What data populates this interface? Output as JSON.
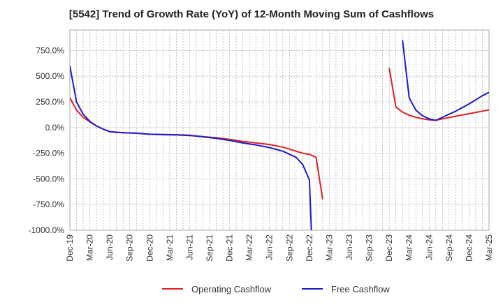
{
  "chart_data": {
    "type": "line",
    "title": "[5542]  Trend of Growth Rate (YoY) of 12-Month Moving Sum of Cashflows",
    "xlabel": "",
    "ylabel": "",
    "x_ticks": [
      "Dec-19",
      "Mar-20",
      "Jun-20",
      "Sep-20",
      "Dec-20",
      "Mar-21",
      "Jun-21",
      "Sep-21",
      "Dec-21",
      "Mar-22",
      "Jun-22",
      "Sep-22",
      "Dec-22",
      "Mar-23",
      "Jun-23",
      "Sep-23",
      "Dec-23",
      "Mar-24",
      "Jun-24",
      "Sep-24",
      "Dec-24",
      "Mar-25"
    ],
    "y_ticks": [
      750,
      500,
      250,
      0,
      -250,
      -500,
      -750,
      -1000
    ],
    "y_tick_labels": [
      "750.0%",
      "500.0%",
      "250.0%",
      "0.0%",
      "-250.0%",
      "-500.0%",
      "-750.0%",
      "-1000.0%"
    ],
    "ylim": [
      -1000,
      950
    ],
    "grid": true,
    "legend_position": "bottom",
    "series": [
      {
        "name": "Operating Cashflow",
        "color": "#e02020",
        "segments": [
          [
            [
              0,
              290
            ],
            [
              1,
              170
            ],
            [
              2,
              100
            ],
            [
              3,
              55
            ],
            [
              4,
              15
            ],
            [
              5,
              -15
            ],
            [
              6,
              -40
            ],
            [
              8,
              -50
            ],
            [
              10,
              -55
            ],
            [
              12,
              -65
            ],
            [
              14,
              -70
            ],
            [
              16,
              -72
            ],
            [
              18,
              -78
            ],
            [
              20,
              -88
            ],
            [
              22,
              -100
            ],
            [
              24,
              -115
            ],
            [
              26,
              -135
            ],
            [
              28,
              -150
            ],
            [
              30,
              -165
            ],
            [
              32,
              -190
            ],
            [
              34,
              -230
            ],
            [
              35,
              -250
            ],
            [
              36,
              -260
            ],
            [
              37,
              -290
            ],
            [
              38,
              -700
            ]
          ],
          [
            [
              48,
              580
            ],
            [
              49,
              200
            ],
            [
              50,
              150
            ],
            [
              51,
              120
            ],
            [
              52,
              100
            ],
            [
              53,
              85
            ],
            [
              54,
              75
            ],
            [
              55,
              70
            ],
            [
              56,
              85
            ],
            [
              58,
              110
            ],
            [
              60,
              135
            ],
            [
              62,
              160
            ],
            [
              64,
              185
            ]
          ]
        ]
      },
      {
        "name": "Free Cashflow",
        "color": "#1a1ad0",
        "segments": [
          [
            [
              0,
              600
            ],
            [
              1,
              250
            ],
            [
              2,
              130
            ],
            [
              3,
              60
            ],
            [
              4,
              15
            ],
            [
              5,
              -15
            ],
            [
              6,
              -40
            ],
            [
              8,
              -50
            ],
            [
              10,
              -55
            ],
            [
              12,
              -65
            ],
            [
              14,
              -68
            ],
            [
              16,
              -70
            ],
            [
              18,
              -75
            ],
            [
              20,
              -90
            ],
            [
              22,
              -105
            ],
            [
              24,
              -125
            ],
            [
              26,
              -150
            ],
            [
              28,
              -170
            ],
            [
              30,
              -195
            ],
            [
              32,
              -230
            ],
            [
              34,
              -290
            ],
            [
              35,
              -360
            ],
            [
              36,
              -510
            ],
            [
              36.3,
              -1000
            ]
          ],
          [
            [
              50,
              850
            ],
            [
              51,
              290
            ],
            [
              52,
              170
            ],
            [
              53,
              115
            ],
            [
              54,
              85
            ],
            [
              55,
              70
            ],
            [
              56,
              100
            ],
            [
              58,
              160
            ],
            [
              60,
              230
            ],
            [
              62,
              310
            ],
            [
              64,
              375
            ]
          ]
        ]
      }
    ]
  }
}
